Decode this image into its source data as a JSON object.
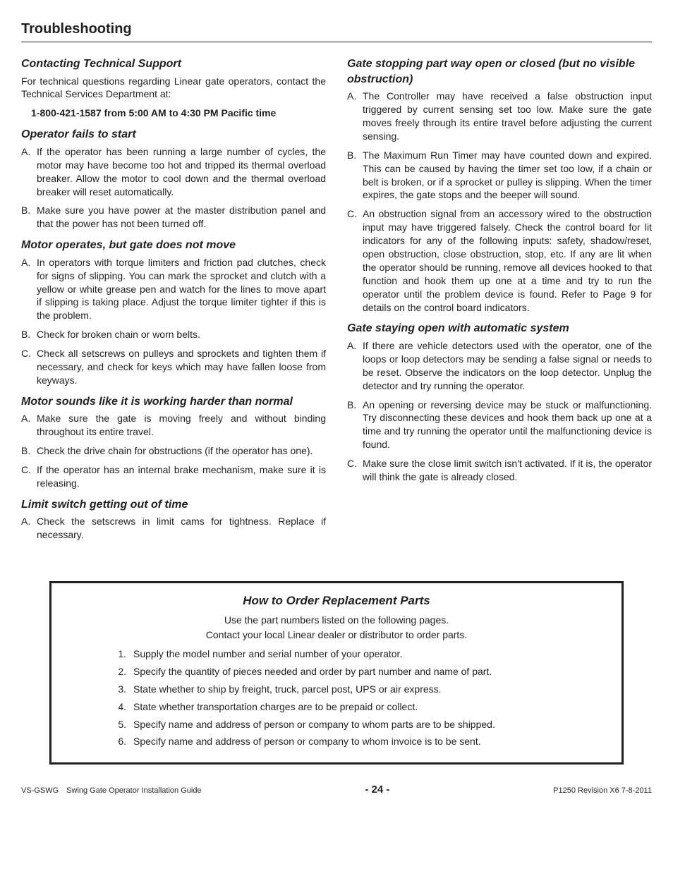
{
  "title": "Troubleshooting",
  "left": {
    "s1": {
      "h": "Contacting Technical Support",
      "p": "For technical questions regarding Linear gate operators, contact the Technical Services Department at:",
      "phone": "1-800-421-1587 from 5:00 AM to 4:30 PM Pacific time"
    },
    "s2": {
      "h": "Operator fails to start",
      "a": "If the operator has been running a large number of cycles, the motor may have become too hot and tripped its thermal overload breaker. Allow the motor to cool down and the thermal overload breaker will reset automatically.",
      "b": "Make sure you have power at the master distribution panel and that the power has not been turned off."
    },
    "s3": {
      "h": "Motor operates, but gate does not move",
      "a": "In operators with torque limiters and friction pad clutches, check for signs of slipping. You can mark the sprocket and clutch with a yellow or white grease pen and watch for the lines to move apart if slipping is taking place. Adjust the torque limiter tighter if this is the problem.",
      "b": "Check for broken chain or worn belts.",
      "c": "Check all setscrews on pulleys and sprockets and tighten them if necessary, and check for keys which may have fallen loose from keyways."
    },
    "s4": {
      "h": "Motor sounds like it is working harder than normal",
      "a": "Make sure the gate is moving freely and without binding throughout its entire travel.",
      "b": "Check the drive chain for obstructions (if the operator has one).",
      "c": "If the operator has an internal brake mechanism, make sure it is releasing."
    },
    "s5": {
      "h": "Limit switch getting out of time",
      "a": "Check the setscrews in limit cams for tightness. Replace if necessary."
    }
  },
  "right": {
    "s1": {
      "h": "Gate stopping part way open or closed (but no visible obstruction)",
      "a": "The Controller may have received a false obstruction input triggered by current sensing set too low. Make sure the gate moves freely through its entire travel before adjusting the current sensing.",
      "b": "The Maximum Run Timer may have counted down and expired. This can be caused by having the timer set too low, if a chain or belt is broken, or if a sprocket or pulley is slipping. When the timer expires, the gate stops and the beeper will sound.",
      "c": "An obstruction signal from an accessory wired to the obstruction input may have triggered falsely. Check the control board for lit indicators for any of the following inputs: safety, shadow/reset, open obstruction, close obstruction, stop, etc. If any are lit when the operator should be running, remove all devices hooked to that function and hook them up one at a time and try to run the operator until the problem device is found. Refer to Page 9 for details on the control board indicators."
    },
    "s2": {
      "h": "Gate staying open with automatic system",
      "a": "If there are vehicle detectors used with the operator, one of the loops or loop detectors may be sending a false signal or needs to be reset. Observe the indicators on the loop detector. Unplug the detector and try running the operator.",
      "b": "An opening or reversing device may be stuck or malfunctioning. Try disconnecting these devices and hook them back up one at a time and try running the operator until the malfunctioning device is found.",
      "c": "Make sure the close limit switch isn't activated. If it is, the operator will think the gate is already closed."
    }
  },
  "order": {
    "title": "How to Order Replacement Parts",
    "intro1": "Use the part numbers listed on the following pages.",
    "intro2": "Contact your local Linear dealer or distributor to order parts.",
    "i1": "Supply the model number and serial number of your operator.",
    "i2": "Specify the quantity of pieces needed and order by part number and name of part.",
    "i3": "State whether to ship by freight, truck, parcel post, UPS or air express.",
    "i4": "State whether transportation charges are to be prepaid or collect.",
    "i5": "Specify name and address of person or company to whom parts are to be shipped.",
    "i6": "Specify name and address of person or company to whom invoice is to be sent."
  },
  "footer": {
    "left": "VS-GSWG Swing Gate Operator Installation Guide",
    "page": "- 24 -",
    "right": "P1250 Revision X6 7-8-2011"
  }
}
